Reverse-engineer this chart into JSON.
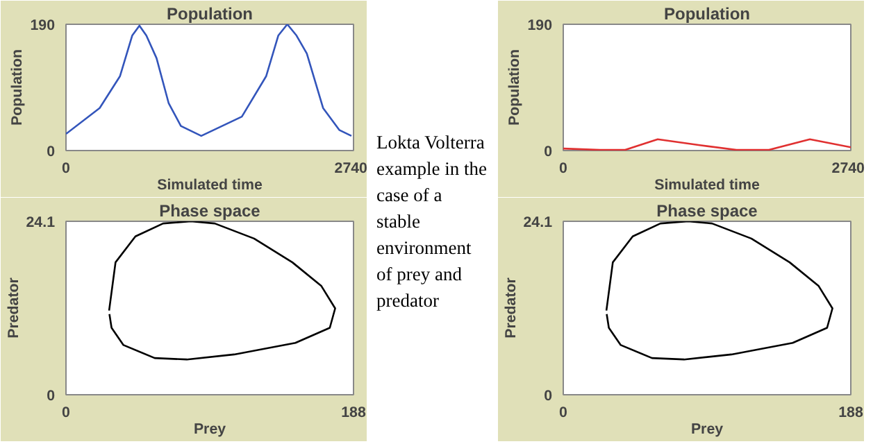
{
  "chart_data": [
    {
      "type": "line",
      "title": "Population",
      "xlabel": "Simulated time",
      "ylabel": "Population",
      "xlim": [
        0,
        2740
      ],
      "ylim": [
        0,
        190
      ],
      "xticks": [
        0,
        2740
      ],
      "yticks": [
        0,
        190
      ],
      "x": [
        0,
        321,
        515,
        631,
        700,
        766,
        863,
        979,
        1095,
        1289,
        1676,
        1908,
        2023,
        2109,
        2197,
        2295,
        2450,
        2604,
        2720
      ],
      "series": [
        {
          "color": "#3355bb",
          "values": [
            25,
            64,
            112,
            173,
            188,
            173,
            139,
            71,
            37,
            22,
            51,
            112,
            173,
            190,
            173,
            146,
            64,
            31,
            22
          ]
        }
      ]
    },
    {
      "type": "line",
      "title": "Population",
      "xlabel": "Simulated time",
      "ylabel": "Population",
      "xlim": [
        0,
        2740
      ],
      "ylim": [
        0,
        190
      ],
      "xticks": [
        0,
        2740
      ],
      "yticks": [
        0,
        190
      ],
      "x": [
        0,
        350,
        590,
        900,
        1300,
        1650,
        1960,
        2350,
        2740
      ],
      "series": [
        {
          "color": "#e03030",
          "values": [
            3,
            1,
            1,
            17,
            8,
            1,
            1,
            17,
            5
          ]
        }
      ]
    },
    {
      "type": "line",
      "title": "Phase space",
      "xlabel": "Prey",
      "ylabel": "Predator",
      "xlim": [
        0,
        188
      ],
      "ylim": [
        0,
        24.1
      ],
      "xticks": [
        0,
        188
      ],
      "yticks": [
        0,
        24.1
      ],
      "series": [
        {
          "color": "#000000",
          "x": [
            28.2,
            32.4,
            45.4,
            63.5,
            81.7,
            97.3,
            123,
            148,
            167,
            176,
            172.5,
            150,
            110,
            79,
            58,
            37.6,
            29.8,
            28.4
          ],
          "values": [
            11.7,
            18.4,
            22.0,
            23.8,
            24.1,
            23.8,
            21.7,
            18.4,
            15.1,
            12.0,
            9.3,
            7.2,
            5.6,
            4.9,
            5.1,
            6.9,
            9.3,
            11.2
          ]
        }
      ]
    },
    {
      "type": "line",
      "title": "Phase space",
      "xlabel": "Prey",
      "ylabel": "Predator",
      "xlim": [
        0,
        188
      ],
      "ylim": [
        0,
        24.1
      ],
      "xticks": [
        0,
        188
      ],
      "yticks": [
        0,
        24.1
      ],
      "series": [
        {
          "color": "#000000",
          "x": [
            28.2,
            32.4,
            45.4,
            63.5,
            81.7,
            97.3,
            123,
            148,
            167,
            176,
            172.5,
            150,
            110,
            79,
            58,
            37.6,
            29.8,
            28.4
          ],
          "values": [
            11.7,
            18.4,
            22.0,
            23.8,
            24.1,
            23.8,
            21.7,
            18.4,
            15.1,
            12.0,
            9.3,
            7.2,
            5.6,
            4.9,
            5.1,
            6.9,
            9.3,
            11.2
          ]
        }
      ]
    },
    {
      "type": "other",
      "annotations": [
        "Lokta Volterra example in the case of a stable environment of prey and predator"
      ]
    }
  ]
}
